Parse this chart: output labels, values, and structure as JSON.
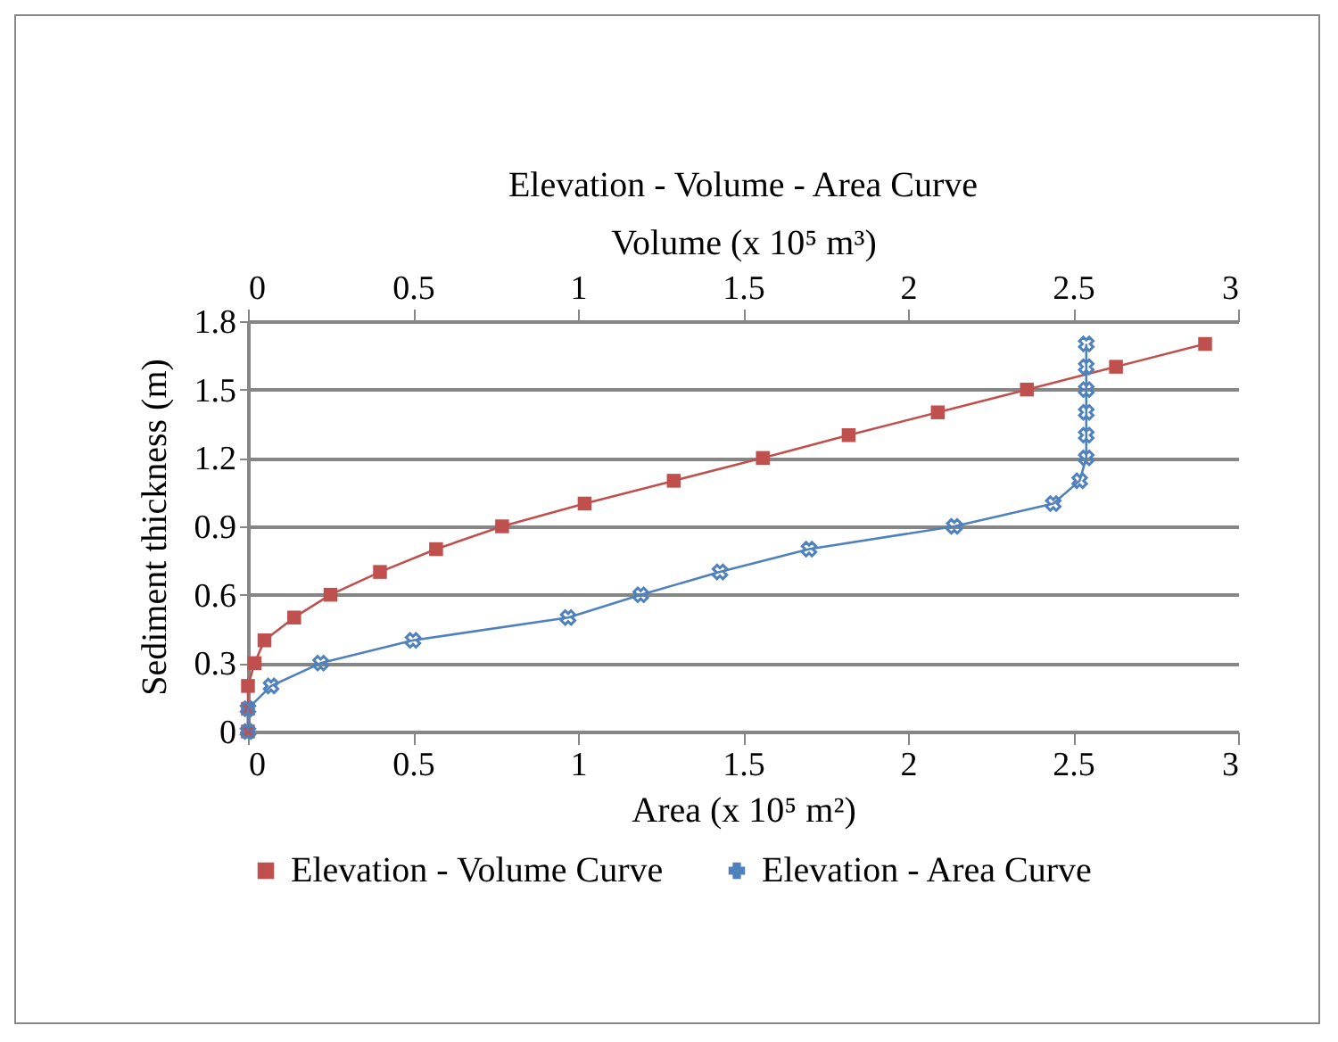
{
  "chart_data": {
    "type": "line",
    "title": "Elevation - Volume - Area Curve",
    "xlabel": "Area (x 10⁵ m²)",
    "x2label": "Volume (x 10⁵ m³)",
    "ylabel": "Sediment thickness (m)",
    "xlim": [
      0,
      3
    ],
    "xticks": [
      0,
      0.5,
      1,
      1.5,
      2,
      2.5,
      3
    ],
    "x2lim": [
      0,
      3
    ],
    "x2ticks": [
      0,
      0.5,
      1,
      1.5,
      2,
      2.5,
      3
    ],
    "ylim": [
      0,
      1.8
    ],
    "yticks": [
      0,
      0.3,
      0.6,
      0.9,
      1.2,
      1.5,
      1.8
    ],
    "grid": "y",
    "legend": "bottom",
    "series": [
      {
        "name": "Elevation - Volume Curve",
        "color": "#c0504d",
        "axis": "x2",
        "marker": "square",
        "x": [
          0,
          0,
          0,
          0.02,
          0.05,
          0.14,
          0.25,
          0.4,
          0.57,
          0.77,
          1.02,
          1.29,
          1.56,
          1.82,
          2.09,
          2.36,
          2.63,
          2.9
        ],
        "values": [
          0,
          0.1,
          0.2,
          0.3,
          0.4,
          0.5,
          0.6,
          0.7,
          0.8,
          0.9,
          1.0,
          1.1,
          1.2,
          1.3,
          1.4,
          1.5,
          1.6,
          1.7
        ]
      },
      {
        "name": "Elevation - Area Curve",
        "color": "#4f81bd",
        "marker": "cross",
        "x": [
          0,
          0,
          0.07,
          0.22,
          0.5,
          0.97,
          1.19,
          1.43,
          1.7,
          2.14,
          2.44,
          2.52,
          2.54,
          2.54,
          2.54,
          2.54,
          2.54,
          2.54
        ],
        "values": [
          0,
          0.1,
          0.2,
          0.3,
          0.4,
          0.5,
          0.6,
          0.7,
          0.8,
          0.9,
          1.0,
          1.1,
          1.2,
          1.3,
          1.4,
          1.5,
          1.6,
          1.7
        ]
      }
    ]
  }
}
